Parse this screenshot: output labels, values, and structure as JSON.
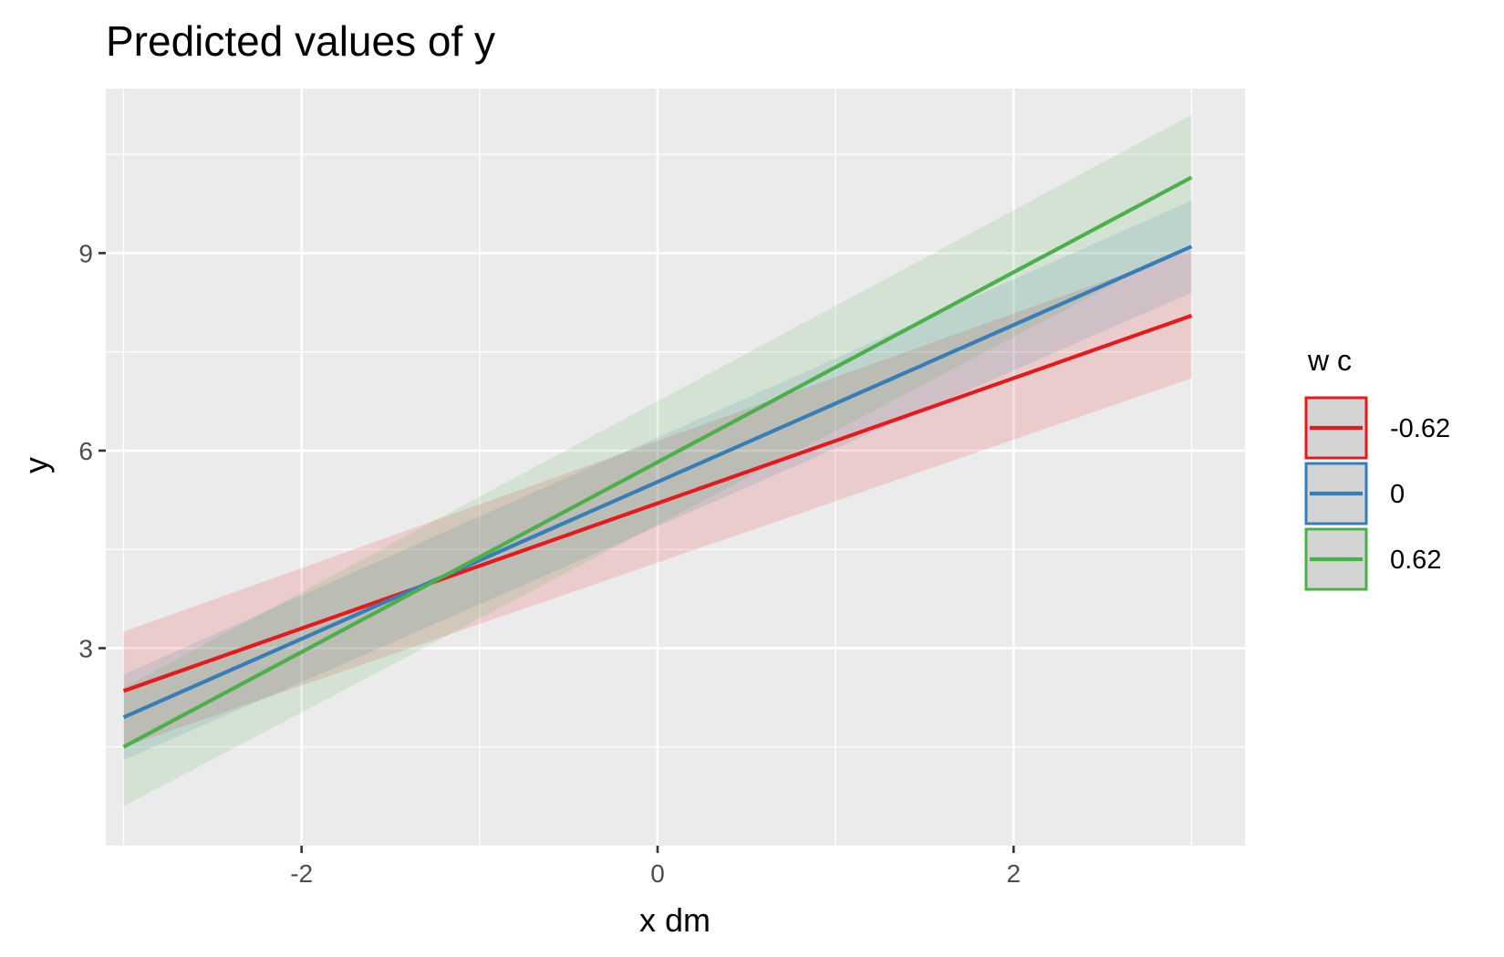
{
  "chart_data": {
    "type": "line",
    "title": "Predicted values of y",
    "xlabel": "x dm",
    "ylabel": "y",
    "xlim": [
      -3.1,
      3.3
    ],
    "ylim": [
      0.0,
      11.5
    ],
    "x_ticks": [
      -2,
      0,
      2
    ],
    "x_tick_labels": [
      "-2",
      "0",
      "2"
    ],
    "y_ticks": [
      3,
      6,
      9
    ],
    "y_tick_labels": [
      "3",
      "6",
      "9"
    ],
    "x_minor": [
      -3,
      -1,
      1,
      3
    ],
    "y_minor": [
      1.5,
      4.5,
      7.5,
      10.5
    ],
    "grid": true,
    "panel_background": "#ebebeb",
    "legend": {
      "title": "w c",
      "position": "right"
    },
    "x": [
      -3,
      3
    ],
    "series": [
      {
        "name": "-0.62",
        "color": "#e41a1c",
        "values": [
          2.35,
          8.05
        ],
        "lower": [
          1.5,
          7.1
        ],
        "upper": [
          3.25,
          9.05
        ]
      },
      {
        "name": "0",
        "color": "#377eb8",
        "values": [
          1.95,
          9.1
        ],
        "lower": [
          1.3,
          8.4
        ],
        "upper": [
          2.6,
          9.8
        ]
      },
      {
        "name": "0.62",
        "color": "#4daf4a",
        "values": [
          1.5,
          10.15
        ],
        "lower": [
          0.6,
          9.15
        ],
        "upper": [
          2.4,
          11.1
        ]
      }
    ]
  }
}
